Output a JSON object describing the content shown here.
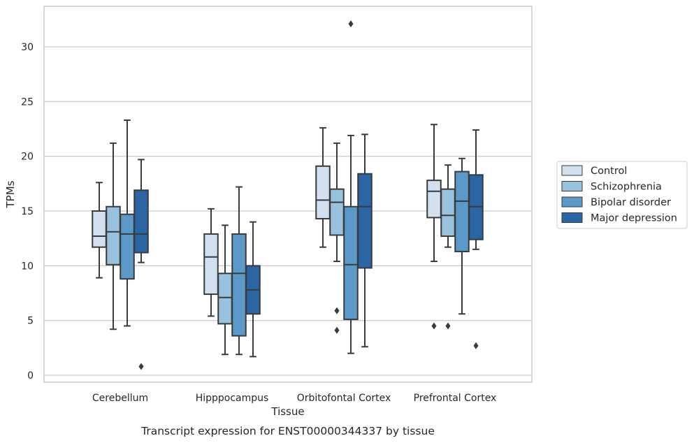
{
  "chart_data": {
    "type": "box",
    "title": "Transcript expression for ENST00000344337 by tissue",
    "xlabel": "Tissue",
    "ylabel": "TPMs",
    "ylim": [
      -0.6,
      33.5
    ],
    "yticks": [
      0,
      5,
      10,
      15,
      20,
      25,
      30
    ],
    "grid": "horizontal",
    "legend_position": "right",
    "categories": [
      "Cerebellum",
      "Hipppocampus",
      "Orbitofontal Cortex",
      "Prefrontal Cortex"
    ],
    "series": [
      {
        "name": "Control",
        "color": "#d1e1f0",
        "boxes": [
          {
            "whisker_low": 8.9,
            "q1": 11.7,
            "median": 12.7,
            "q3": 15.0,
            "whisker_high": 17.6,
            "outliers": []
          },
          {
            "whisker_low": 5.4,
            "q1": 7.4,
            "median": 10.8,
            "q3": 12.9,
            "whisker_high": 15.2,
            "outliers": []
          },
          {
            "whisker_low": 11.7,
            "q1": 14.3,
            "median": 16.0,
            "q3": 19.1,
            "whisker_high": 22.6,
            "outliers": []
          },
          {
            "whisker_low": 10.4,
            "q1": 14.4,
            "median": 16.8,
            "q3": 17.8,
            "whisker_high": 22.9,
            "outliers": [
              4.5
            ]
          }
        ]
      },
      {
        "name": "Schizophrenia",
        "color": "#98c2de",
        "boxes": [
          {
            "whisker_low": 4.2,
            "q1": 10.1,
            "median": 13.1,
            "q3": 15.4,
            "whisker_high": 21.2,
            "outliers": []
          },
          {
            "whisker_low": 1.9,
            "q1": 4.7,
            "median": 7.1,
            "q3": 9.3,
            "whisker_high": 13.7,
            "outliers": []
          },
          {
            "whisker_low": 10.4,
            "q1": 12.8,
            "median": 15.8,
            "q3": 17.0,
            "whisker_high": 21.2,
            "outliers": [
              5.9,
              4.1
            ]
          },
          {
            "whisker_low": 11.7,
            "q1": 12.7,
            "median": 14.6,
            "q3": 17.0,
            "whisker_high": 19.2,
            "outliers": [
              4.5
            ]
          }
        ]
      },
      {
        "name": "Bipolar disorder",
        "color": "#5b9ac8",
        "boxes": [
          {
            "whisker_low": 4.5,
            "q1": 8.8,
            "median": 12.9,
            "q3": 14.7,
            "whisker_high": 23.3,
            "outliers": []
          },
          {
            "whisker_low": 1.9,
            "q1": 3.6,
            "median": 9.3,
            "q3": 12.9,
            "whisker_high": 17.2,
            "outliers": []
          },
          {
            "whisker_low": 2.0,
            "q1": 5.1,
            "median": 10.1,
            "q3": 15.4,
            "whisker_high": 21.9,
            "outliers": [
              32.1
            ]
          },
          {
            "whisker_low": 5.6,
            "q1": 11.3,
            "median": 15.9,
            "q3": 18.6,
            "whisker_high": 19.8,
            "outliers": []
          }
        ]
      },
      {
        "name": "Major depression",
        "color": "#2a66a5",
        "boxes": [
          {
            "whisker_low": 10.3,
            "q1": 11.2,
            "median": 12.9,
            "q3": 16.9,
            "whisker_high": 19.7,
            "outliers": [
              0.8
            ]
          },
          {
            "whisker_low": 1.7,
            "q1": 5.6,
            "median": 7.8,
            "q3": 10.0,
            "whisker_high": 14.0,
            "outliers": []
          },
          {
            "whisker_low": 2.6,
            "q1": 9.8,
            "median": 15.4,
            "q3": 18.4,
            "whisker_high": 22.0,
            "outliers": []
          },
          {
            "whisker_low": 11.5,
            "q1": 12.4,
            "median": 15.4,
            "q3": 18.3,
            "whisker_high": 22.4,
            "outliers": [
              2.7
            ]
          }
        ]
      }
    ]
  }
}
